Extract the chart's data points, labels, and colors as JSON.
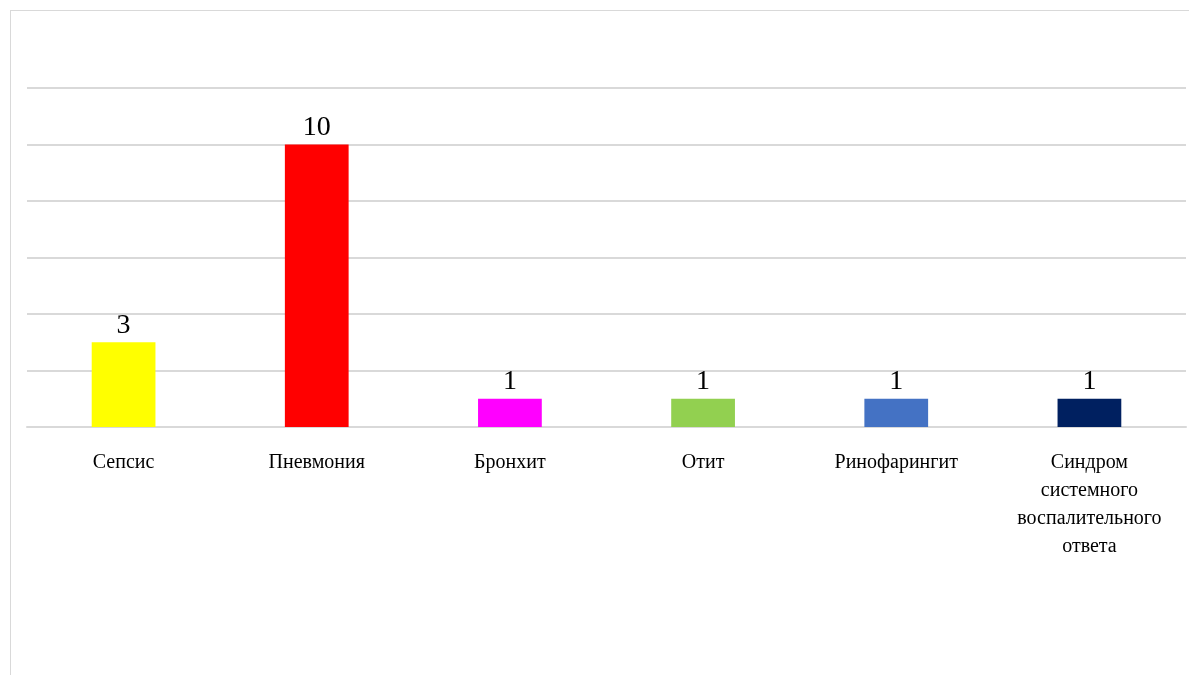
{
  "chart_data": {
    "type": "bar",
    "categories": [
      "Сепсис",
      "Пневмония",
      "Бронхит",
      "Отит",
      "Ринофарингит",
      "Синдром системного воспалительного ответа"
    ],
    "values": [
      3,
      10,
      1,
      1,
      1,
      1
    ],
    "colors": [
      "#ffff00",
      "#ff0000",
      "#ff00ff",
      "#92d050",
      "#4472c4",
      "#002060"
    ],
    "ylim": [
      0,
      12
    ],
    "yticks": [
      0,
      2,
      4,
      6,
      8,
      10,
      12
    ],
    "grid": "y",
    "tick_labels": "x",
    "data_labels": true
  }
}
